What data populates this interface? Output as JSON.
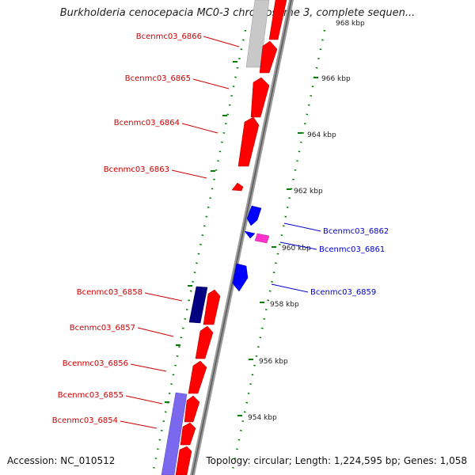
{
  "title": "Burkholderia cenocepacia MC0-3 chromosome 3, complete sequen...",
  "footer": {
    "accession": "Accession: NC_010512",
    "summary": "Topology: circular; Length: 1,224,595 bp; Genes: 1,058"
  },
  "colors": {
    "forward_gene": "#ff0000",
    "reverse_gene": "#0000ff",
    "pink_gene": "#ff33cc",
    "navy_gene": "#000080",
    "lavender_gene": "#7b68ee",
    "grey_gene": "#c8c8c8",
    "backbone": "#888888",
    "ticks": "#008000",
    "forward_label": "#cc0000",
    "reverse_label": "#0000cc"
  },
  "ticks": [
    {
      "label": "968 kbp"
    },
    {
      "label": "966 kbp"
    },
    {
      "label": "964 kbp"
    },
    {
      "label": "962 kbp"
    },
    {
      "label": "960 kbp"
    },
    {
      "label": "958 kbp"
    },
    {
      "label": "956 kbp"
    },
    {
      "label": "954 kbp"
    }
  ],
  "genes_left": [
    {
      "label": "Bcenmc03_6866"
    },
    {
      "label": "Bcenmc03_6865"
    },
    {
      "label": "Bcenmc03_6864"
    },
    {
      "label": "Bcenmc03_6863"
    },
    {
      "label": "Bcenmc03_6858"
    },
    {
      "label": "Bcenmc03_6857"
    },
    {
      "label": "Bcenmc03_6856"
    },
    {
      "label": "Bcenmc03_6855"
    },
    {
      "label": "Bcenmc03_6854"
    }
  ],
  "genes_right": [
    {
      "label": "Bcenmc03_6862"
    },
    {
      "label": "Bcenmc03_6861"
    },
    {
      "label": "Bcenmc03_6859"
    }
  ]
}
